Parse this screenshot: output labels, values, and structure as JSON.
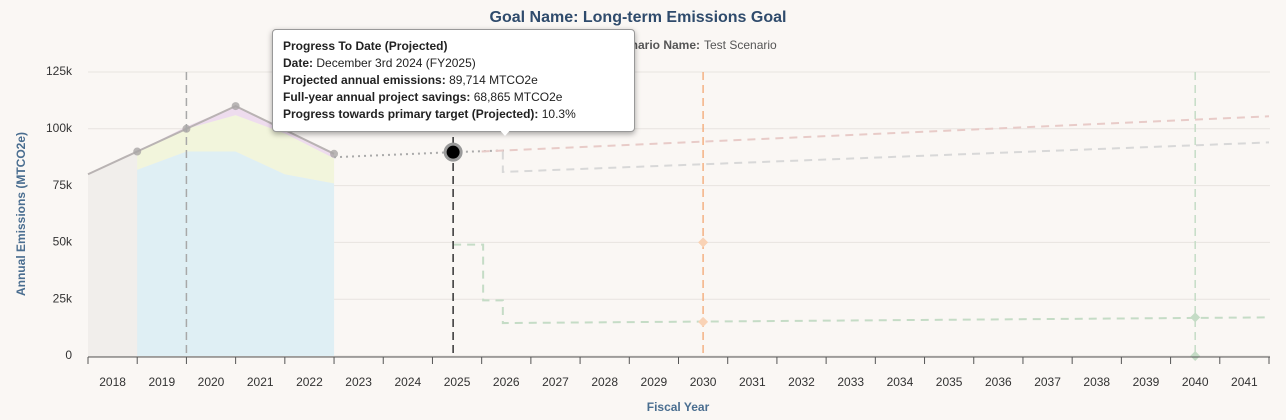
{
  "chart_data": {
    "type": "line",
    "title": "Goal Name: Long-term Emissions Goal",
    "subtitle_label": "Scenario Name:",
    "subtitle_value": "Test Scenario",
    "y_label": "Annual Emissions (MTCO2e)",
    "x_label": "Fiscal Year",
    "xlim": [
      2017.5,
      2041.5
    ],
    "xticks": [
      2018,
      2019,
      2020,
      2021,
      2022,
      2023,
      2024,
      2025,
      2026,
      2027,
      2028,
      2029,
      2030,
      2031,
      2032,
      2033,
      2034,
      2035,
      2036,
      2037,
      2038,
      2039,
      2040,
      2041
    ],
    "ylim": [
      0,
      125000
    ],
    "yticks": [
      0,
      {
        "value": 25000,
        "label": "25k"
      },
      {
        "value": 50000,
        "label": "50k"
      },
      {
        "value": 75000,
        "label": "75k"
      },
      {
        "value": 100000,
        "label": "100k"
      },
      {
        "value": 125000,
        "label": "125k"
      }
    ],
    "grid": true,
    "areas": [
      {
        "color": "#dfeff4",
        "x": [
          2018.5,
          2019.5,
          2020.5,
          2021.5,
          2022.5
        ],
        "values": [
          82000,
          90000,
          90000,
          80000,
          76000
        ]
      },
      {
        "color": "#f2f5dc",
        "x": [
          2018.5,
          2019.5,
          2020.5,
          2021.5,
          2022.5
        ],
        "values": [
          8000,
          10000,
          16000,
          18000,
          11000
        ]
      },
      {
        "color": "#eedcee",
        "x": [
          2018.5,
          2019.5,
          2020.5,
          2021.5,
          2022.5
        ],
        "values": [
          0,
          1000,
          4000,
          2000,
          2000
        ]
      }
    ],
    "series": [
      {
        "color": "#b9b3b3",
        "fill": "#f1eeeb",
        "dash": "",
        "points": true,
        "x": [
          2017.5,
          2018.5,
          2019.5,
          2020.5,
          2022.5
        ],
        "values": [
          80000,
          90000,
          100000,
          110000,
          89000
        ]
      },
      {
        "color": "#aaaaaa",
        "dash": "2,4",
        "x": [
          2022.5,
          2024.92,
          2026
        ],
        "values": [
          87500,
          89714,
          90500
        ]
      },
      {
        "color": "#e8cbc8",
        "dash": "8,6",
        "x": [
          2025.5,
          2041.5
        ],
        "values": [
          90000,
          105500
        ]
      },
      {
        "color": "#d8d8d8",
        "dash": "8,6",
        "x": [
          2025.93,
          2025.93,
          2041.5
        ],
        "values": [
          90000,
          81000,
          94000
        ]
      },
      {
        "color": "#c5dcc6",
        "dash": "8,6",
        "x": [
          2024.92,
          2025.53,
          2025.53,
          2025.93,
          2025.93,
          2041.5
        ],
        "values": [
          49000,
          49000,
          24500,
          24500,
          14500,
          17000
        ]
      }
    ],
    "reference_lines": [
      {
        "x": 2019.5,
        "color": "#a8a8a8"
      },
      {
        "x": 2024.92,
        "color": "#333333"
      },
      {
        "x": 2030,
        "color": "#f4b183"
      },
      {
        "x": 2040,
        "color": "#c5dcc6"
      }
    ],
    "markers": [
      {
        "x": 2030,
        "y": 50000,
        "color": "#f9d2b5"
      },
      {
        "x": 2030,
        "y": 15000,
        "color": "#f9d2b5"
      },
      {
        "x": 2040,
        "y": 17000,
        "color": "#c5dcc6"
      },
      {
        "x": 2040,
        "y": 0,
        "color": "#c5dcc6"
      }
    ],
    "highlight": {
      "x": 2024.92,
      "y": 89714
    },
    "tooltip": {
      "title": "Progress To Date (Projected)",
      "rows": [
        {
          "label": "Date:",
          "value": "December 3rd 2024 (FY2025)"
        },
        {
          "label": "Projected annual emissions:",
          "value": "89,714 MTCO2e"
        },
        {
          "label": "Full-year annual project savings:",
          "value": "68,865 MTCO2e"
        },
        {
          "label": "Progress towards primary target (Projected):",
          "value": "10.3%"
        }
      ]
    }
  }
}
